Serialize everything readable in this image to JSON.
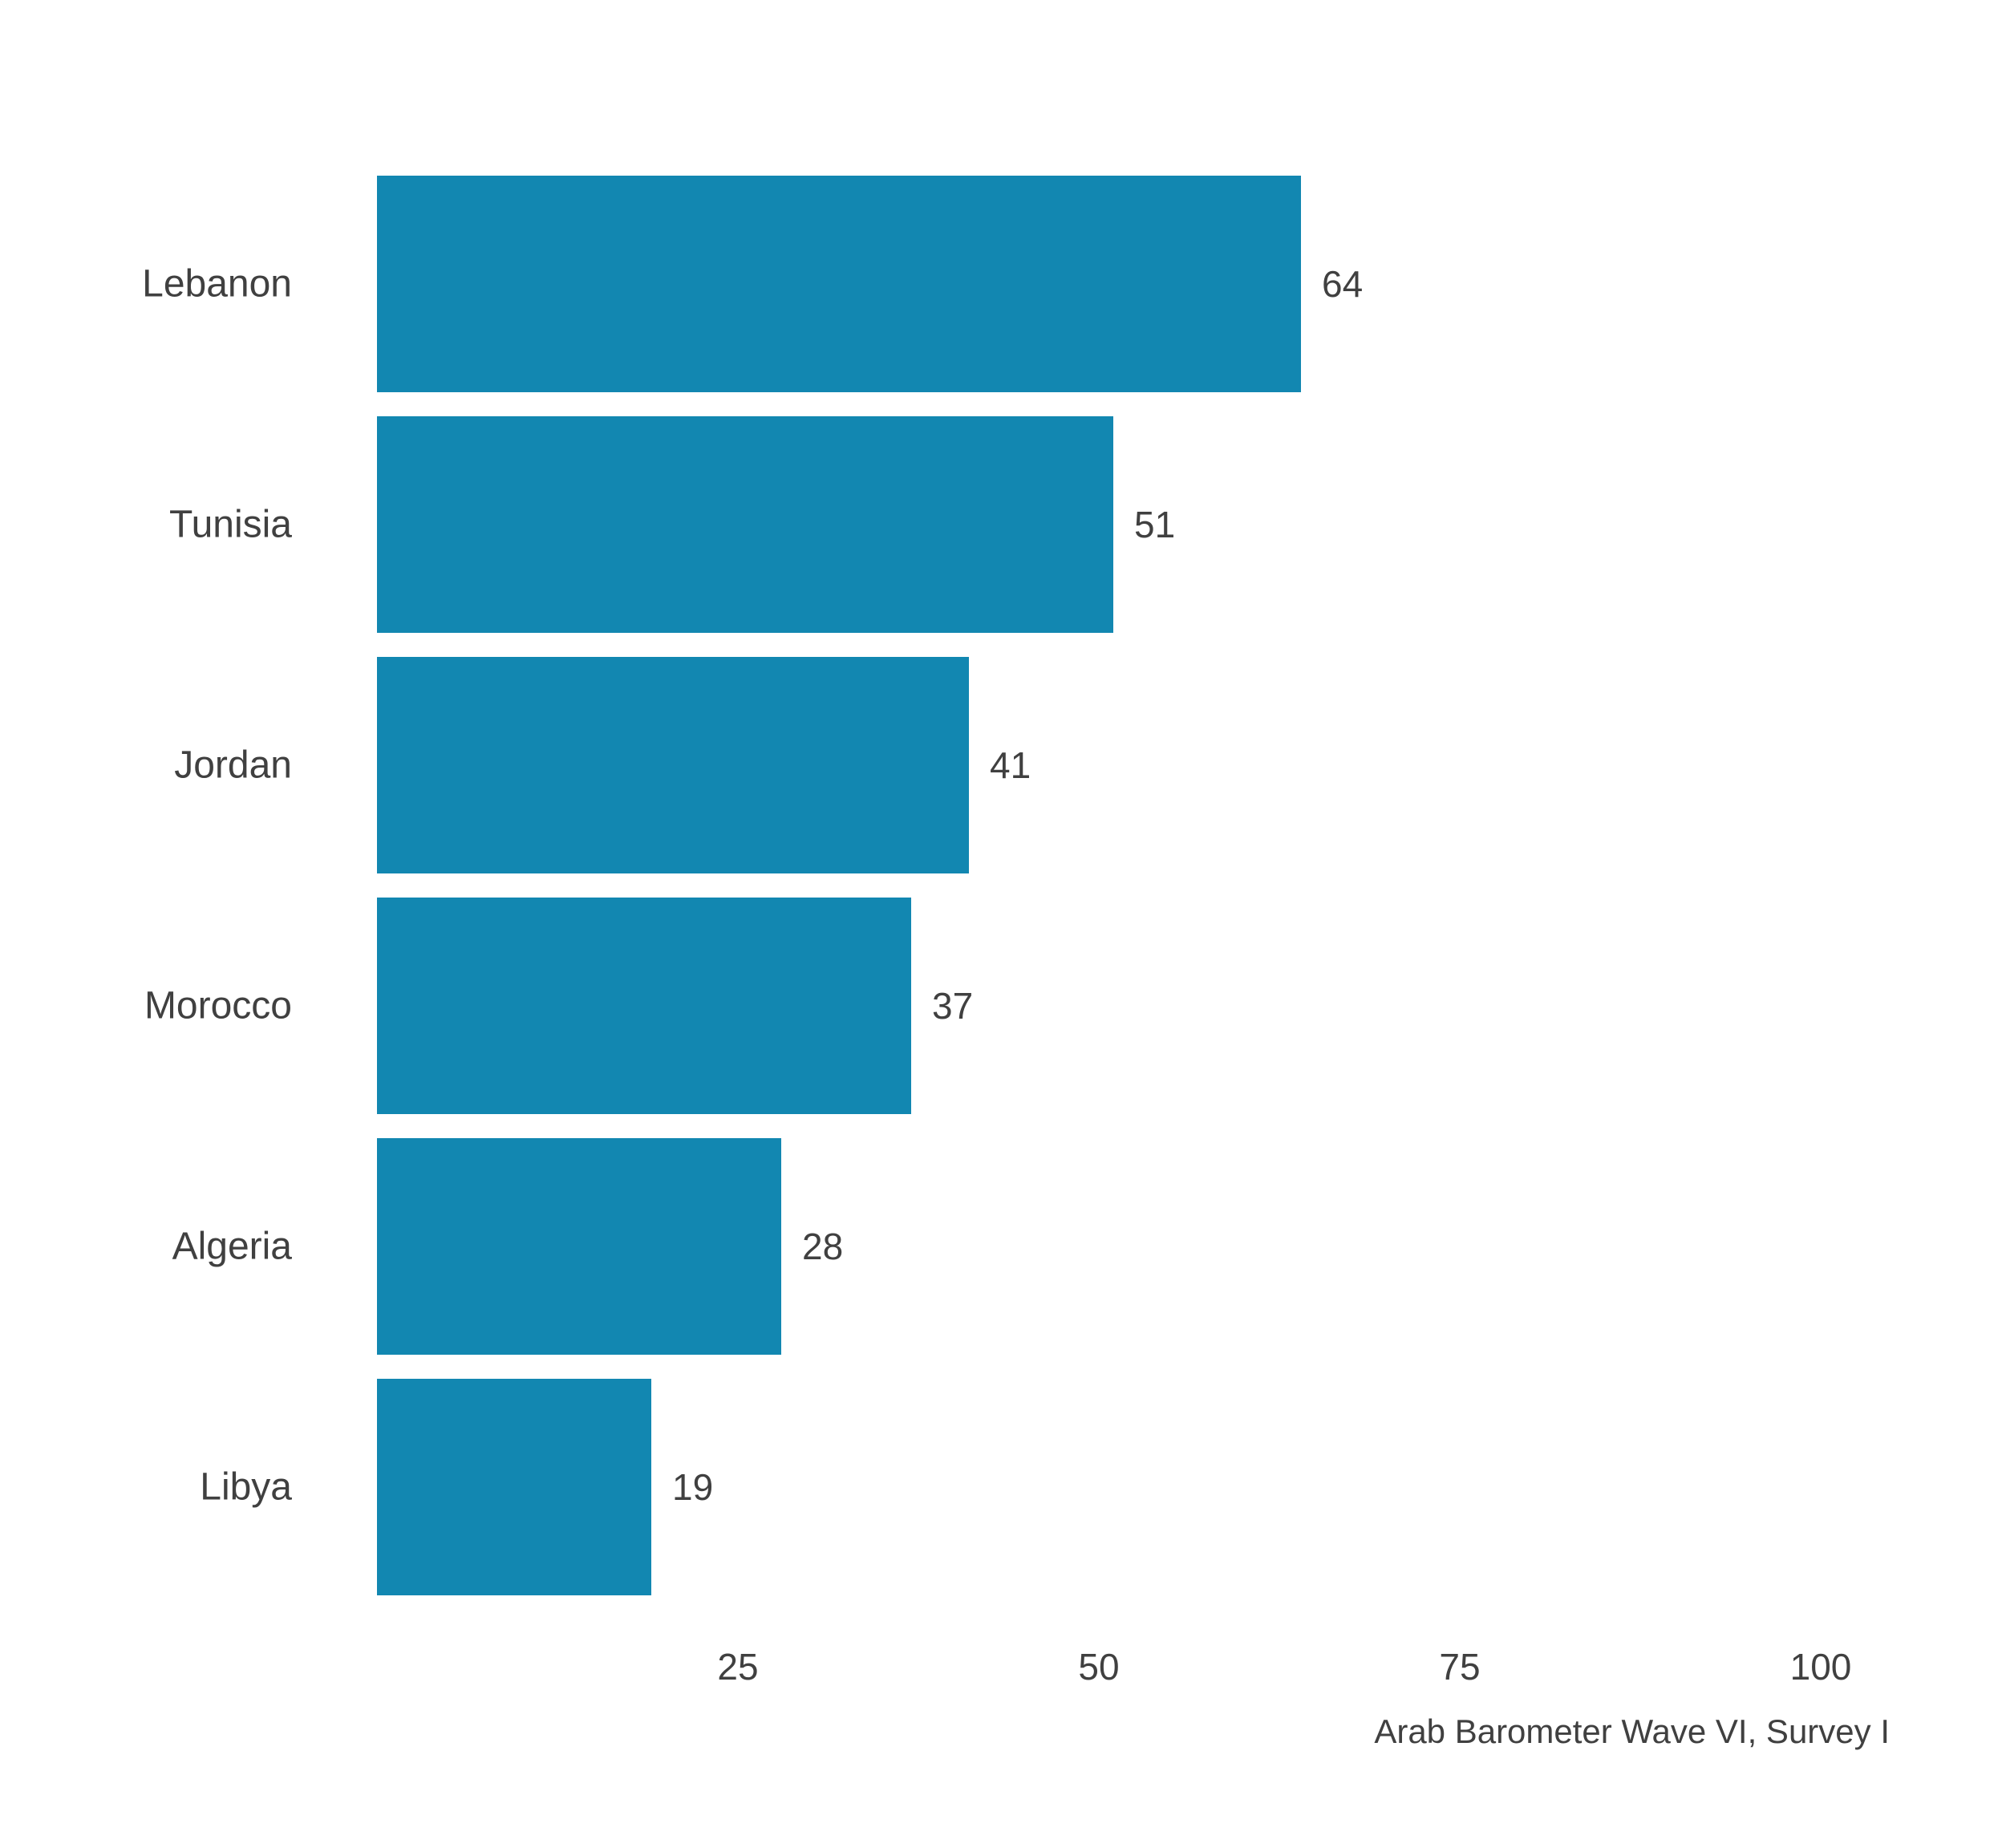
{
  "chart_data": {
    "type": "bar",
    "orientation": "horizontal",
    "categories": [
      "Lebanon",
      "Tunisia",
      "Jordan",
      "Morocco",
      "Algeria",
      "Libya"
    ],
    "values": [
      64,
      51,
      41,
      37,
      28,
      19
    ],
    "x_ticks": [
      25,
      50,
      75,
      100
    ],
    "xlim": [
      0,
      100
    ],
    "title": "",
    "xlabel": "",
    "ylabel": "",
    "caption": "Arab Barometer Wave VI, Survey I",
    "grid": false,
    "legend": "none",
    "bar_color": "#1287b1",
    "text_color": "#404040"
  }
}
